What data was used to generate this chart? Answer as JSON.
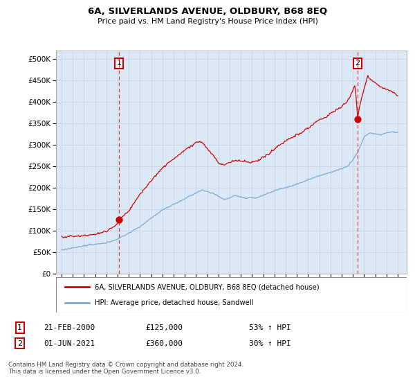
{
  "title": "6A, SILVERLANDS AVENUE, OLDBURY, B68 8EQ",
  "subtitle": "Price paid vs. HM Land Registry's House Price Index (HPI)",
  "legend_line1": "6A, SILVERLANDS AVENUE, OLDBURY, B68 8EQ (detached house)",
  "legend_line2": "HPI: Average price, detached house, Sandwell",
  "annotation1_date": "21-FEB-2000",
  "annotation1_price": "£125,000",
  "annotation1_hpi": "53% ↑ HPI",
  "annotation2_date": "01-JUN-2021",
  "annotation2_price": "£360,000",
  "annotation2_hpi": "30% ↑ HPI",
  "footer": "Contains HM Land Registry data © Crown copyright and database right 2024.\nThis data is licensed under the Open Government Licence v3.0.",
  "red_color": "#cc0000",
  "blue_color": "#7aaad0",
  "bg_fill": "#dce8f5",
  "background_color": "#ffffff",
  "grid_color": "#c8d8e8",
  "sale1_year": 2000.12,
  "sale1_price": 125000,
  "sale2_year": 2021.42,
  "sale2_price": 360000,
  "ylim": [
    0,
    520000
  ],
  "ytick_vals": [
    0,
    50000,
    100000,
    150000,
    200000,
    250000,
    300000,
    350000,
    400000,
    450000,
    500000
  ],
  "xlim_start": 1994.5,
  "xlim_end": 2025.8
}
